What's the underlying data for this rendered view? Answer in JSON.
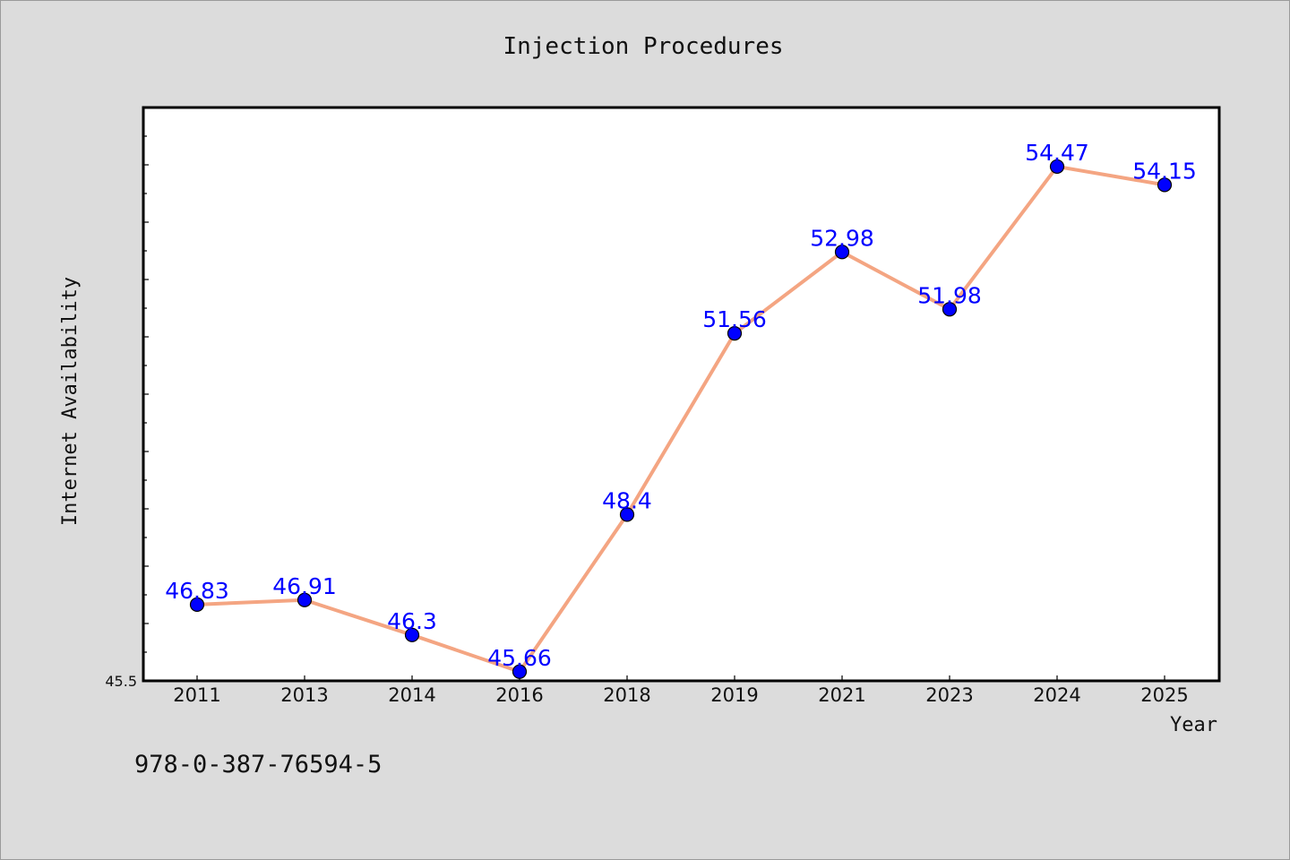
{
  "chart_data": {
    "type": "line",
    "title": "Injection Procedures",
    "xlabel": "Year",
    "ylabel": "Internet Availability",
    "categories": [
      "2011",
      "2013",
      "2014",
      "2016",
      "2018",
      "2019",
      "2021",
      "2023",
      "2024",
      "2025"
    ],
    "series": [
      {
        "values": [
          46.83,
          46.91,
          46.3,
          45.66,
          48.4,
          51.56,
          52.98,
          51.98,
          54.47,
          54.15
        ],
        "labels": [
          "46.83",
          "46.91",
          "46.3",
          "45.66",
          "48.4",
          "51.56",
          "52.98",
          "51.98",
          "54.47",
          "54.15"
        ],
        "line_color": "#f4a582",
        "marker_color": "#0000ff",
        "label_color": "#0000ff"
      }
    ],
    "ylim": [
      45.5,
      55.5
    ],
    "yticks_labeled": [
      "45.5"
    ],
    "grid": false,
    "legend": "none"
  },
  "footer": {
    "isbn": "978-0-387-76594-5"
  },
  "colors": {
    "background": "#dcdcdc",
    "plot_background": "#ffffff"
  }
}
